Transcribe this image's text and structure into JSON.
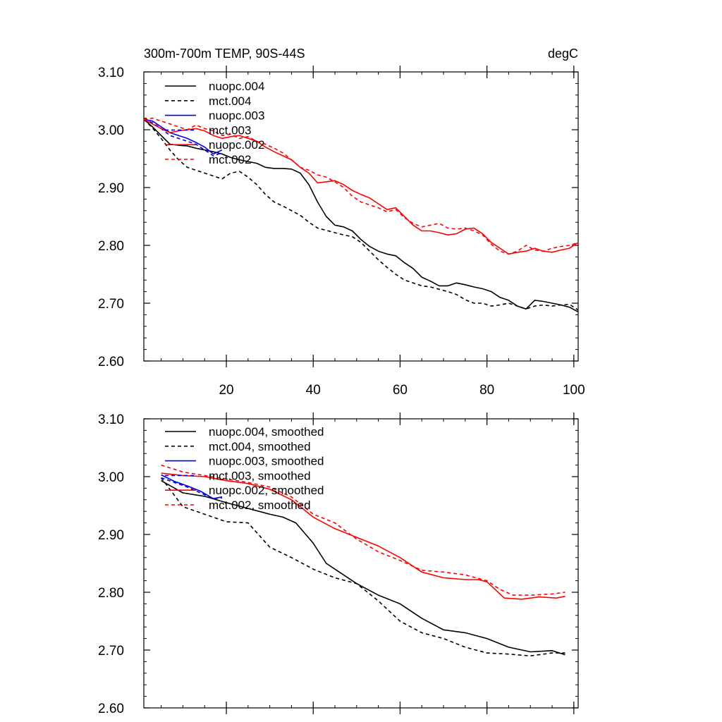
{
  "chart_data": [
    {
      "type": "line",
      "title": "300m-700m TEMP, 90S-44S",
      "units": "degC",
      "xlabel": "",
      "ylabel": "",
      "xlim": [
        1,
        101
      ],
      "ylim": [
        2.6,
        3.1
      ],
      "xticks": [
        20,
        40,
        60,
        80,
        100
      ],
      "xtick_labels": [
        "20",
        "40",
        "60",
        "80",
        "100"
      ],
      "yticks": [
        2.6,
        2.7,
        2.8,
        2.9,
        3.0,
        3.1
      ],
      "ytick_labels": [
        "2.60",
        "2.70",
        "2.80",
        "2.90",
        "3.00",
        "3.10"
      ],
      "legend_position": "top-left",
      "series": [
        {
          "name": "nuopc.004",
          "color": "#000000",
          "dash": "solid",
          "x": [
            1,
            3,
            5,
            7,
            9,
            11,
            13,
            15,
            17,
            19,
            21,
            23,
            25,
            27,
            29,
            31,
            33,
            35,
            37,
            39,
            41,
            43,
            45,
            47,
            49,
            51,
            53,
            55,
            57,
            59,
            61,
            63,
            65,
            67,
            69,
            71,
            73,
            75,
            77,
            79,
            81,
            83,
            85,
            87,
            89,
            91,
            93,
            95,
            97,
            99,
            101
          ],
          "y": [
            3.018,
            3.005,
            2.99,
            2.975,
            2.973,
            2.972,
            2.968,
            2.965,
            2.962,
            2.958,
            2.952,
            2.948,
            2.945,
            2.942,
            2.935,
            2.933,
            2.933,
            2.932,
            2.925,
            2.905,
            2.875,
            2.85,
            2.835,
            2.832,
            2.825,
            2.81,
            2.798,
            2.79,
            2.785,
            2.782,
            2.77,
            2.76,
            2.745,
            2.738,
            2.73,
            2.73,
            2.735,
            2.732,
            2.728,
            2.725,
            2.72,
            2.71,
            2.705,
            2.695,
            2.69,
            2.705,
            2.703,
            2.7,
            2.697,
            2.693,
            2.685
          ]
        },
        {
          "name": "mct.004",
          "color": "#000000",
          "dash": "dashed",
          "x": [
            1,
            3,
            5,
            7,
            9,
            11,
            13,
            15,
            17,
            19,
            21,
            23,
            25,
            27,
            29,
            31,
            33,
            35,
            37,
            39,
            41,
            43,
            45,
            47,
            49,
            51,
            53,
            55,
            57,
            59,
            61,
            63,
            65,
            67,
            69,
            71,
            73,
            75,
            77,
            79,
            81,
            83,
            85,
            87,
            89,
            91,
            93,
            95,
            97,
            99,
            101
          ],
          "y": [
            3.018,
            3.003,
            2.985,
            2.965,
            2.948,
            2.935,
            2.93,
            2.925,
            2.92,
            2.915,
            2.925,
            2.928,
            2.918,
            2.905,
            2.888,
            2.875,
            2.868,
            2.86,
            2.852,
            2.84,
            2.83,
            2.826,
            2.822,
            2.818,
            2.815,
            2.805,
            2.79,
            2.775,
            2.762,
            2.75,
            2.74,
            2.735,
            2.73,
            2.728,
            2.724,
            2.72,
            2.715,
            2.706,
            2.7,
            2.7,
            2.695,
            2.697,
            2.7,
            2.695,
            2.69,
            2.695,
            2.697,
            2.695,
            2.697,
            2.698,
            2.688
          ]
        },
        {
          "name": "nuopc.003",
          "color": "#0000ee",
          "dash": "solid",
          "x": [
            1,
            3,
            5,
            7,
            9,
            11,
            13,
            15,
            17,
            19
          ],
          "y": [
            3.018,
            3.015,
            3.005,
            2.995,
            2.99,
            2.985,
            2.978,
            2.97,
            2.958,
            2.965
          ]
        },
        {
          "name": "mct.003",
          "color": "#0000ee",
          "dash": "dashed",
          "x": [
            1,
            3,
            5,
            7,
            9,
            11,
            13,
            15,
            17,
            19
          ],
          "y": [
            3.018,
            3.012,
            3.002,
            2.99,
            2.985,
            2.98,
            2.975,
            2.965,
            2.955,
            2.96
          ]
        },
        {
          "name": "nuopc.002",
          "color": "#ff0000",
          "dash": "solid",
          "x": [
            1,
            3,
            5,
            7,
            9,
            11,
            13,
            15,
            17,
            19,
            21,
            23,
            25,
            27,
            29,
            31,
            33,
            35,
            37,
            39,
            41,
            43,
            45,
            47,
            49,
            51,
            53,
            55,
            57,
            59,
            61,
            63,
            65,
            67,
            69,
            71,
            73,
            75,
            77,
            79,
            81,
            83,
            85,
            87,
            89,
            91,
            93,
            95,
            97,
            99,
            101
          ],
          "y": [
            3.018,
            3.01,
            3.002,
            2.995,
            2.998,
            3.0,
            3.002,
            2.998,
            2.99,
            2.985,
            2.988,
            2.99,
            2.985,
            2.98,
            2.97,
            2.962,
            2.955,
            2.948,
            2.935,
            2.925,
            2.908,
            2.91,
            2.912,
            2.905,
            2.895,
            2.888,
            2.882,
            2.872,
            2.862,
            2.865,
            2.85,
            2.835,
            2.825,
            2.825,
            2.822,
            2.818,
            2.82,
            2.828,
            2.83,
            2.82,
            2.805,
            2.795,
            2.785,
            2.788,
            2.79,
            2.795,
            2.79,
            2.788,
            2.792,
            2.795,
            2.805
          ]
        },
        {
          "name": "mct.002",
          "color": "#ff0000",
          "dash": "dashed",
          "x": [
            1,
            3,
            5,
            7,
            9,
            11,
            13,
            15,
            17,
            19,
            21,
            23,
            25,
            27,
            29,
            31,
            33,
            35,
            37,
            39,
            41,
            43,
            45,
            47,
            49,
            51,
            53,
            55,
            57,
            59,
            61,
            63,
            65,
            67,
            69,
            71,
            73,
            75,
            77,
            79,
            81,
            83,
            85,
            87,
            89,
            91,
            93,
            95,
            97,
            99,
            101
          ],
          "y": [
            3.018,
            3.02,
            3.015,
            3.01,
            3.005,
            3.0,
            3.008,
            3.002,
            2.998,
            2.99,
            2.992,
            2.985,
            2.988,
            2.98,
            2.975,
            2.968,
            2.96,
            2.948,
            2.935,
            2.93,
            2.922,
            2.918,
            2.91,
            2.9,
            2.885,
            2.875,
            2.87,
            2.865,
            2.858,
            2.862,
            2.848,
            2.838,
            2.832,
            2.835,
            2.838,
            2.83,
            2.828,
            2.83,
            2.825,
            2.818,
            2.802,
            2.79,
            2.785,
            2.79,
            2.8,
            2.792,
            2.79,
            2.795,
            2.798,
            2.8,
            2.805
          ]
        }
      ]
    },
    {
      "type": "line",
      "title": "",
      "xlabel": "",
      "ylabel": "",
      "xlim": [
        1,
        101
      ],
      "ylim": [
        2.6,
        3.1
      ],
      "xticks": [
        20,
        40,
        60,
        80,
        100
      ],
      "yticks": [
        2.6,
        2.7,
        2.8,
        2.9,
        3.0,
        3.1
      ],
      "ytick_labels": [
        "2.60",
        "2.70",
        "2.80",
        "2.90",
        "3.00",
        "3.10"
      ],
      "legend_position": "top-left",
      "series": [
        {
          "name": "nuopc.004, smoothed",
          "color": "#000000",
          "dash": "solid",
          "x": [
            5,
            10,
            15,
            20,
            25,
            30,
            33,
            36,
            40,
            43,
            46,
            50,
            55,
            60,
            65,
            70,
            75,
            80,
            85,
            90,
            95,
            98
          ],
          "y": [
            2.993,
            2.972,
            2.966,
            2.955,
            2.945,
            2.935,
            2.93,
            2.92,
            2.885,
            2.85,
            2.835,
            2.815,
            2.795,
            2.78,
            2.755,
            2.735,
            2.73,
            2.72,
            2.705,
            2.697,
            2.699,
            2.692
          ]
        },
        {
          "name": "mct.004, smoothed",
          "color": "#000000",
          "dash": "dashed",
          "x": [
            5,
            10,
            15,
            20,
            25,
            30,
            35,
            40,
            45,
            50,
            55,
            60,
            65,
            70,
            75,
            80,
            85,
            90,
            95,
            98
          ],
          "y": [
            2.998,
            2.948,
            2.935,
            2.922,
            2.92,
            2.878,
            2.86,
            2.84,
            2.825,
            2.815,
            2.785,
            2.75,
            2.73,
            2.72,
            2.705,
            2.695,
            2.693,
            2.69,
            2.695,
            2.695
          ]
        },
        {
          "name": "nuopc.003, smoothed",
          "color": "#0000ee",
          "dash": "solid",
          "x": [
            5,
            8,
            11,
            14,
            17,
            19
          ],
          "y": [
            3.003,
            2.992,
            2.984,
            2.975,
            2.962,
            2.965
          ]
        },
        {
          "name": "mct.003, smoothed",
          "color": "#0000ee",
          "dash": "dashed",
          "x": [
            5,
            8,
            11,
            14,
            17,
            19
          ],
          "y": [
            2.998,
            2.99,
            2.982,
            2.972,
            2.962,
            2.963
          ]
        },
        {
          "name": "nuopc.002, smoothed",
          "color": "#ff0000",
          "dash": "solid",
          "x": [
            5,
            10,
            15,
            20,
            25,
            30,
            35,
            40,
            45,
            50,
            55,
            60,
            65,
            70,
            75,
            78,
            80,
            84,
            88,
            92,
            96,
            98
          ],
          "y": [
            3.006,
            3.002,
            3.0,
            2.993,
            2.988,
            2.978,
            2.96,
            2.93,
            2.91,
            2.895,
            2.88,
            2.86,
            2.835,
            2.825,
            2.822,
            2.822,
            2.818,
            2.79,
            2.788,
            2.792,
            2.79,
            2.793
          ]
        },
        {
          "name": "mct.002, smoothed",
          "color": "#ff0000",
          "dash": "dashed",
          "x": [
            5,
            10,
            15,
            20,
            25,
            30,
            35,
            40,
            45,
            50,
            55,
            60,
            65,
            70,
            75,
            80,
            83,
            86,
            90,
            95,
            98
          ],
          "y": [
            3.02,
            3.008,
            3.002,
            2.996,
            2.99,
            2.982,
            2.965,
            2.935,
            2.92,
            2.892,
            2.87,
            2.855,
            2.838,
            2.835,
            2.83,
            2.82,
            2.805,
            2.795,
            2.795,
            2.797,
            2.8
          ]
        }
      ]
    }
  ]
}
